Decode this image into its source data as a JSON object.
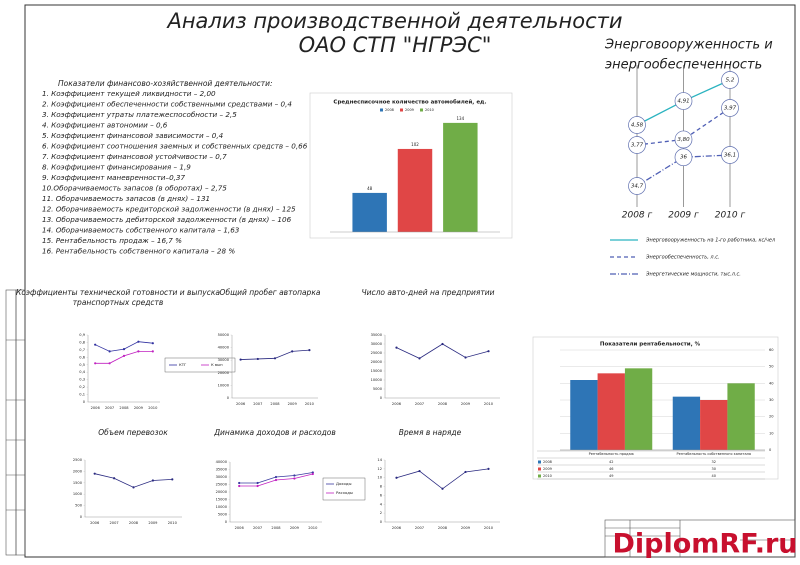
{
  "title": [
    "Анализ производственной деятельности",
    "ОАО СТП \"НГРЭС\""
  ],
  "indicators_heading": "Показатели финансово-хозяйственной деятельности:",
  "indicators": [
    "1. Коэффициент текущей ликвидности – 2,00",
    "2. Коэффициент обеспеченности собственными средствами – 0,4",
    "3. Коэффициент утраты платежеспособности – 2,5",
    "4. Коэффициент автономии – 0,6",
    "5. Коэффициент финансовой зависимости – 0,4",
    "6. Коэффициент соотношения заемных и собственных средств – 0,66",
    "7. Коэффициент финансовой устойчивости – 0,7",
    "8. Коэффициент финансирования – 1,9",
    "9. Коэффициент маневренности–0,37",
    "10.Оборачиваемость запасов (в оборотах) – 2,75",
    "11. Оборачиваемость запасов (в днях) – 131",
    "12. Оборачиваемость кредиторской задолженности (в днях) – 125",
    "13. Оборачиваемость дебиторской задолженности (в днях) – 106",
    "14. Оборачиваемость собственного капитала – 1,63",
    "15. Рентабельность продаж – 16,7 %",
    "16. Рентабельность собственного капитала – 28 %"
  ],
  "watermark": "DiplomRF.ru",
  "chart_data": [
    {
      "type": "bar",
      "title": "Среднесписочное количество автомобилей, ед.",
      "ylim": [
        0,
        140
      ],
      "data_labels": true,
      "series": [
        {
          "name": "2008",
          "color": "#2e75b6",
          "values": [
            48
          ]
        },
        {
          "name": "2009",
          "color": "#e04646",
          "values": [
            102
          ]
        },
        {
          "name": "2010",
          "color": "#70ad47",
          "values": [
            134
          ]
        }
      ]
    },
    {
      "type": "line",
      "title": [
        "Энерговооруженность и",
        "энергообеспеченность"
      ],
      "categories": [
        "2008 г",
        "2009 г",
        "2010 г"
      ],
      "series": [
        {
          "name": "Энерговооруженность на 1-го работника, кс/чел",
          "color": "#2bb3c0",
          "linestyle": "solid",
          "values": [
            4.58,
            4.91,
            5.2
          ],
          "value_labels": [
            "4,58",
            "4,91",
            "5,2"
          ]
        },
        {
          "name": "Энергообеспеченность, л.с.",
          "color": "#4f5fb5",
          "linestyle": "dashed",
          "values": [
            3.77,
            3.8,
            3.97
          ],
          "value_labels": [
            "3,77",
            "3,80",
            "3,97"
          ]
        },
        {
          "name": "Энергетические мощности, тыс.л.с.",
          "color": "#4f5fb5",
          "linestyle": "dashdot",
          "values": [
            34.7,
            36,
            36.1
          ],
          "value_labels": [
            "34,7",
            "36",
            "36,1"
          ]
        }
      ]
    },
    {
      "type": "line",
      "title": [
        "Коэффициенты технической готовности и выпуска",
        "транспортных средств"
      ],
      "categories": [
        "2006",
        "2007",
        "2008",
        "2009",
        "2010"
      ],
      "ylim": [
        0,
        0.9
      ],
      "yticks": [
        0,
        {
          "value": 0.1,
          "label": "0,1"
        },
        {
          "value": 0.2,
          "label": "0,2"
        },
        {
          "value": 0.3,
          "label": "0,3"
        },
        {
          "value": 0.4,
          "label": "0,4"
        },
        {
          "value": 0.5,
          "label": "0,5"
        },
        {
          "value": 0.6,
          "label": "0,6"
        },
        {
          "value": 0.7,
          "label": "0,7"
        },
        {
          "value": 0.8,
          "label": "0,8"
        },
        {
          "value": 0.9,
          "label": "0,9"
        }
      ],
      "series": [
        {
          "name": "КТГ",
          "color": "#3030a0",
          "values": [
            0.77,
            0.68,
            0.71,
            0.81,
            0.79
          ]
        },
        {
          "name": "К вып",
          "color": "#c020c0",
          "values": [
            0.52,
            0.52,
            0.62,
            0.68,
            0.68
          ]
        }
      ]
    },
    {
      "type": "line",
      "title": "Общий пробег автопарка",
      "categories": [
        "2006",
        "2007",
        "2008",
        "2009",
        "2010"
      ],
      "ylim": [
        0,
        50000
      ],
      "yticks": [
        0,
        10000,
        20000,
        30000,
        40000,
        50000
      ],
      "color": "#2a2a80",
      "values": [
        30500,
        31000,
        31500,
        37000,
        38000
      ]
    },
    {
      "type": "line",
      "title": "Число авто-дней на предприятии",
      "categories": [
        "2006",
        "2007",
        "2008",
        "2009",
        "2010"
      ],
      "ylim": [
        0,
        35000
      ],
      "yticks": [
        0,
        5000,
        10000,
        15000,
        20000,
        25000,
        30000,
        35000
      ],
      "color": "#2a2a80",
      "values": [
        28000,
        22000,
        30000,
        22500,
        26000
      ]
    },
    {
      "type": "bar",
      "title": "Показатели рентабельности, %",
      "categories": [
        "Рентабельность продаж",
        "Рентабельность собственного капитала"
      ],
      "ylim": [
        0,
        60
      ],
      "yticks": [
        0,
        10,
        20,
        30,
        40,
        50,
        60
      ],
      "yaxis_side": "right",
      "grid": true,
      "table": true,
      "series": [
        {
          "name": "2008",
          "color": "#2e75b6",
          "values": [
            42,
            32
          ]
        },
        {
          "name": "2009",
          "color": "#e04646",
          "values": [
            46,
            30
          ]
        },
        {
          "name": "2010",
          "color": "#70ad47",
          "values": [
            49,
            40
          ]
        }
      ]
    },
    {
      "type": "line",
      "title": "Объем перевозок",
      "categories": [
        "2006",
        "2007",
        "2008",
        "2009",
        "2010"
      ],
      "ylim": [
        0,
        2500
      ],
      "yticks": [
        0,
        500,
        1000,
        1500,
        2000,
        2500
      ],
      "color": "#2a2a80",
      "values": [
        1900,
        1700,
        1300,
        1600,
        1650
      ]
    },
    {
      "type": "line",
      "title": "Динамика доходов и расходов",
      "categories": [
        "2006",
        "2007",
        "2008",
        "2009",
        "2010"
      ],
      "ylim": [
        0,
        40000
      ],
      "yticks": [
        0,
        5000,
        10000,
        15000,
        20000,
        25000,
        30000,
        35000,
        40000
      ],
      "series": [
        {
          "name": "Доходы",
          "color": "#3a3aa0",
          "values": [
            26000,
            26000,
            30000,
            31000,
            33000
          ]
        },
        {
          "name": "Расходы",
          "color": "#c020c0",
          "values": [
            24000,
            24000,
            28000,
            29000,
            32000
          ]
        }
      ]
    },
    {
      "type": "line",
      "title": "Время в наряде",
      "categories": [
        "2006",
        "2007",
        "2008",
        "2009",
        "2010"
      ],
      "ylim": [
        0,
        14
      ],
      "yticks": [
        0,
        2,
        4,
        6,
        8,
        10,
        12,
        14
      ],
      "color": "#2a2a80",
      "values": [
        10,
        11.5,
        7.5,
        11.3,
        12
      ]
    }
  ]
}
